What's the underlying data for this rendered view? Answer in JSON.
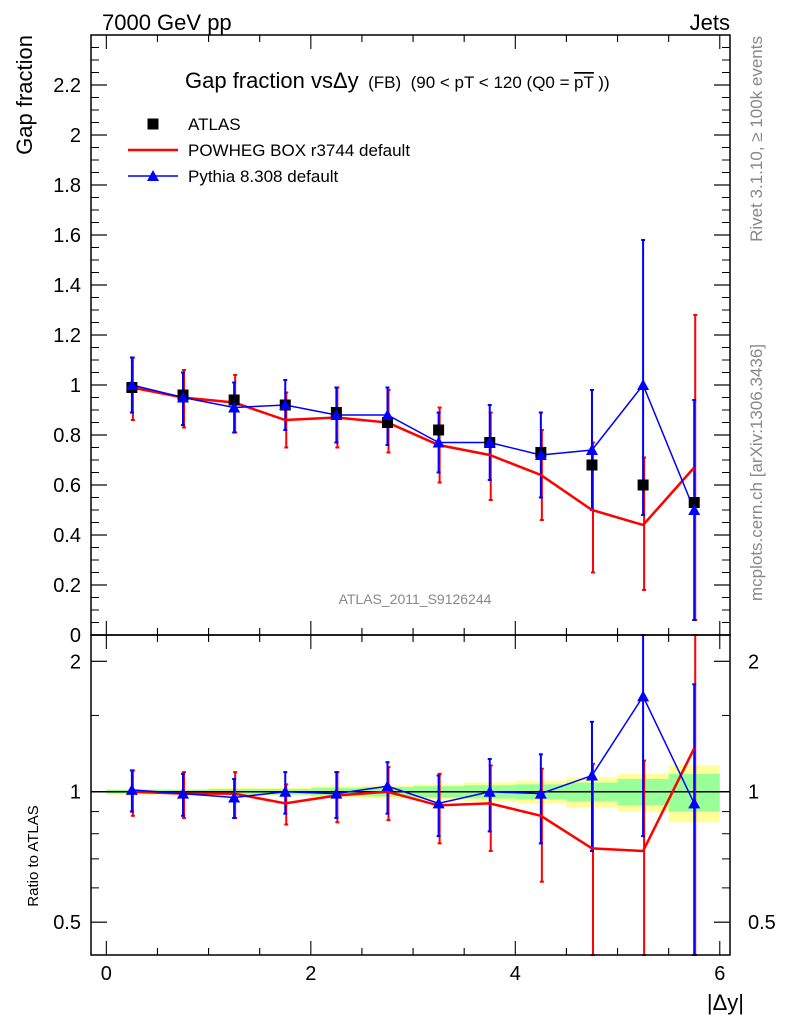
{
  "header": {
    "left": "7000 GeV pp",
    "right": "Jets"
  },
  "side_labels": {
    "rivet": "Rivet 3.1.10, ≥ 100k events",
    "mcplots": "mcplots.cern.ch [arXiv:1306.3436]"
  },
  "watermark": "ATLAS_2011_S9126244",
  "chart_data": [
    {
      "type": "scatter",
      "title_main": "Gap fraction vsΔy",
      "title_fb": "(FB)",
      "title_range": "(90 < pT < 120 (Q0 =",
      "title_pt": "pT",
      "title_close": "))",
      "ylabel": "Gap fraction",
      "xlim": [
        -0.15,
        6.1
      ],
      "ylim": [
        0,
        2.4
      ],
      "yticks": [
        0,
        0.2,
        0.4,
        0.6,
        0.8,
        1,
        1.2,
        1.4,
        1.6,
        1.8,
        2,
        2.2
      ],
      "ytick_labels": [
        "0",
        "0.2",
        "0.4",
        "0.6",
        "0.8",
        "1",
        "1.2",
        "1.4",
        "1.6",
        "1.8",
        "2",
        "2.2"
      ],
      "legend_position": "top-left",
      "x": [
        0.25,
        0.75,
        1.25,
        1.75,
        2.25,
        2.75,
        3.25,
        3.75,
        4.25,
        4.75,
        5.25,
        5.75
      ],
      "series": [
        {
          "name": "ATLAS",
          "color": "#000000",
          "marker": "square",
          "values": [
            0.99,
            0.96,
            0.94,
            0.92,
            0.89,
            0.85,
            0.82,
            0.77,
            0.73,
            0.68,
            0.6,
            0.53
          ]
        },
        {
          "name": "POWHEG BOX r3744 default",
          "color": "#ff0000",
          "marker": "none",
          "values": [
            0.99,
            0.95,
            0.93,
            0.86,
            0.87,
            0.85,
            0.76,
            0.72,
            0.64,
            0.5,
            0.44,
            0.67
          ],
          "err_low": [
            0.13,
            0.12,
            0.12,
            0.11,
            0.12,
            0.12,
            0.15,
            0.18,
            0.18,
            0.25,
            0.26,
            0.61
          ],
          "err_high": [
            0.12,
            0.11,
            0.11,
            0.11,
            0.12,
            0.13,
            0.15,
            0.17,
            0.18,
            0.27,
            0.27,
            0.61
          ]
        },
        {
          "name": "Pythia 8.308 default",
          "color": "#0000ff",
          "marker": "triangle",
          "values": [
            1.0,
            0.95,
            0.91,
            0.92,
            0.88,
            0.88,
            0.77,
            0.77,
            0.72,
            0.74,
            1.0,
            0.5
          ],
          "err_low": [
            0.11,
            0.11,
            0.1,
            0.1,
            0.11,
            0.12,
            0.12,
            0.15,
            0.17,
            0.24,
            0.52,
            0.44
          ],
          "err_high": [
            0.11,
            0.1,
            0.1,
            0.1,
            0.11,
            0.11,
            0.12,
            0.15,
            0.17,
            0.24,
            0.58,
            0.44
          ]
        }
      ]
    },
    {
      "type": "scatter",
      "title": "",
      "xlabel": "|Δy|",
      "ylabel": "Ratio to ATLAS",
      "xlim": [
        -0.15,
        6.1
      ],
      "ylim": [
        0.42,
        2.3
      ],
      "log_y": true,
      "xticks": [
        0,
        2,
        4,
        6
      ],
      "xtick_labels": [
        "0",
        "2",
        "4",
        "6"
      ],
      "yticks": [
        0.5,
        1,
        2
      ],
      "ytick_labels": [
        "0.5",
        "1",
        "2"
      ],
      "band_edges": [
        0,
        0.5,
        1,
        1.5,
        2,
        2.5,
        3,
        3.5,
        4,
        4.5,
        5,
        5.5,
        6
      ],
      "band_inner": [
        0.01,
        0.01,
        0.015,
        0.015,
        0.02,
        0.025,
        0.03,
        0.035,
        0.04,
        0.05,
        0.07,
        0.1
      ],
      "band_outer": [
        0.015,
        0.015,
        0.02,
        0.02,
        0.03,
        0.035,
        0.04,
        0.05,
        0.06,
        0.08,
        0.1,
        0.15
      ],
      "x": [
        0.25,
        0.75,
        1.25,
        1.75,
        2.25,
        2.75,
        3.25,
        3.75,
        4.25,
        4.75,
        5.25,
        5.75
      ],
      "series": [
        {
          "name": "POWHEG BOX r3744 default",
          "color": "#ff0000",
          "values": [
            1.0,
            0.99,
            0.99,
            0.94,
            0.98,
            1.0,
            0.93,
            0.94,
            0.88,
            0.74,
            0.73,
            1.26
          ],
          "err_low": [
            0.12,
            0.12,
            0.12,
            0.1,
            0.13,
            0.14,
            0.17,
            0.21,
            0.26,
            0.42,
            0.43,
            1.15
          ],
          "err_high": [
            0.12,
            0.12,
            0.12,
            0.1,
            0.13,
            0.14,
            0.17,
            0.21,
            0.25,
            0.42,
            0.45,
            1.15
          ]
        },
        {
          "name": "Pythia 8.308 default",
          "color": "#0000ff",
          "values": [
            1.01,
            0.99,
            0.97,
            1.0,
            0.99,
            1.03,
            0.94,
            1.0,
            0.99,
            1.09,
            1.66,
            0.94
          ],
          "err_low": [
            0.11,
            0.11,
            0.1,
            0.11,
            0.12,
            0.14,
            0.15,
            0.19,
            0.23,
            0.36,
            0.87,
            0.83
          ],
          "err_high": [
            0.11,
            0.11,
            0.1,
            0.11,
            0.12,
            0.14,
            0.15,
            0.19,
            0.23,
            0.36,
            0.97,
            0.83
          ]
        }
      ]
    }
  ]
}
